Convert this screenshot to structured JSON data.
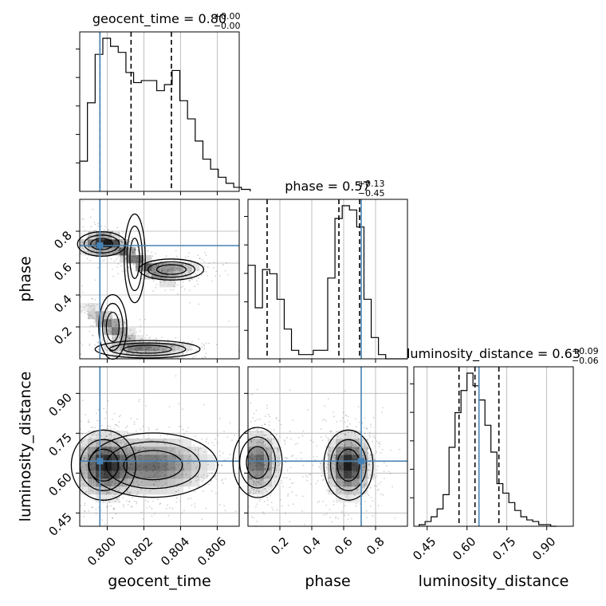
{
  "chart_data": {
    "type": "corner",
    "parameters": [
      "geocent_time",
      "phase",
      "luminosity_distance"
    ],
    "truths": {
      "geocent_time": 0.7996,
      "phase": 0.71,
      "luminosity_distance": 0.645
    },
    "diagonal": [
      {
        "param": "geocent_time",
        "title_base": "geocent_time = 0.80",
        "title_plus": "+0.00",
        "title_minus": "−0.00",
        "quantiles": [
          0.7996,
          0.8013,
          0.8035
        ],
        "bin_edges": [
          0.7985,
          0.79892,
          0.79934,
          0.79976,
          0.80018,
          0.8006,
          0.80102,
          0.80144,
          0.80186,
          0.80228,
          0.8027,
          0.80312,
          0.80354,
          0.80396,
          0.80438,
          0.8048,
          0.80522,
          0.80564,
          0.80606,
          0.80648,
          0.8069,
          0.80732,
          0.8078
        ],
        "counts": [
          15,
          44,
          68,
          76,
          72,
          69,
          59,
          54,
          55,
          55,
          50,
          53,
          60,
          45,
          36,
          25,
          16,
          11,
          7,
          4,
          2,
          1
        ]
      },
      {
        "param": "phase",
        "title_base": "phase = 0.57",
        "title_plus": "+0.13",
        "title_minus": "−0.45",
        "quantiles": [
          0.12,
          0.57,
          0.7
        ],
        "bin_edges": [
          0.0,
          0.04545,
          0.0909,
          0.13636,
          0.18182,
          0.22727,
          0.27273,
          0.31818,
          0.36364,
          0.40909,
          0.45455,
          0.5,
          0.54545,
          0.59091,
          0.63636,
          0.68182,
          0.72727,
          0.77273,
          0.81818,
          0.86364,
          0.90909,
          0.95455,
          1.0
        ],
        "counts": [
          22,
          12,
          21,
          20,
          14,
          7,
          2,
          1,
          1,
          2,
          2,
          19,
          33,
          36,
          35,
          31,
          14,
          5,
          1,
          0,
          0,
          0
        ]
      },
      {
        "param": "luminosity_distance",
        "title_base": "luminosity_distance = 0.63",
        "title_plus": "+0.09",
        "title_minus": "−0.06",
        "quantiles": [
          0.57,
          0.63,
          0.72
        ],
        "bin_edges": [
          0.42,
          0.4425,
          0.465,
          0.4875,
          0.51,
          0.5325,
          0.555,
          0.5775,
          0.6,
          0.6225,
          0.645,
          0.6675,
          0.69,
          0.7125,
          0.735,
          0.7575,
          0.78,
          0.8025,
          0.825,
          0.8475,
          0.87,
          0.8925,
          0.915,
          0.9375
        ],
        "counts": [
          1,
          3,
          6,
          11,
          20,
          50,
          72,
          86,
          97,
          89,
          80,
          64,
          47,
          27,
          21,
          15,
          10,
          6,
          4,
          3,
          1,
          1,
          0
        ]
      }
    ],
    "axes": {
      "geocent_time": {
        "lim": [
          0.7985,
          0.8072
        ],
        "ticks": [
          0.8,
          0.802,
          0.804,
          0.806
        ],
        "tick_labels": [
          "0.800",
          "0.802",
          "0.804",
          "0.806"
        ]
      },
      "phase": {
        "lim": [
          0.0,
          1.0
        ],
        "ticks": [
          0.2,
          0.4,
          0.6,
          0.8
        ],
        "tick_labels": [
          "0.2",
          "0.4",
          "0.6",
          "0.8"
        ]
      },
      "luminosity_distance": {
        "lim": [
          0.4,
          1.0
        ],
        "ticks": [
          0.45,
          0.6,
          0.75,
          0.9
        ],
        "tick_labels": [
          "0.45",
          "0.60",
          "0.75",
          "0.90"
        ]
      }
    },
    "grid": true,
    "truth_color": "#4682b4",
    "hist_color": "#000000",
    "xlabels": [
      "geocent_time",
      "phase",
      "luminosity_distance"
    ],
    "ylabels": [
      "phase",
      "luminosity_distance"
    ],
    "density_blobs": {
      "geocent_time|phase": [
        {
          "cx": 0.7997,
          "cy": 0.72,
          "sx": 0.0006,
          "sy": 0.035,
          "w": 1.0
        },
        {
          "cx": 0.8015,
          "cy": 0.63,
          "sx": 0.0011,
          "sy": 0.03,
          "w": 0.8,
          "slope": -75
        },
        {
          "cx": 0.8035,
          "cy": 0.56,
          "sx": 0.0008,
          "sy": 0.03,
          "w": 0.6
        },
        {
          "cx": 0.8003,
          "cy": 0.2,
          "sx": 0.0008,
          "sy": 0.04,
          "w": 0.7,
          "slope": -75
        },
        {
          "cx": 0.8022,
          "cy": 0.06,
          "sx": 0.0013,
          "sy": 0.025,
          "w": 0.7
        }
      ],
      "geocent_time|luminosity_distance": [
        {
          "cx": 0.7998,
          "cy": 0.63,
          "sx": 0.0008,
          "sy": 0.06,
          "w": 1.0
        },
        {
          "cx": 0.8025,
          "cy": 0.63,
          "sx": 0.0016,
          "sy": 0.055,
          "w": 0.8
        }
      ],
      "phase|luminosity_distance": [
        {
          "cx": 0.06,
          "cy": 0.64,
          "sx": 0.07,
          "sy": 0.06,
          "w": 0.7
        },
        {
          "cx": 0.63,
          "cy": 0.63,
          "sx": 0.07,
          "sy": 0.06,
          "w": 1.0
        }
      ]
    }
  }
}
